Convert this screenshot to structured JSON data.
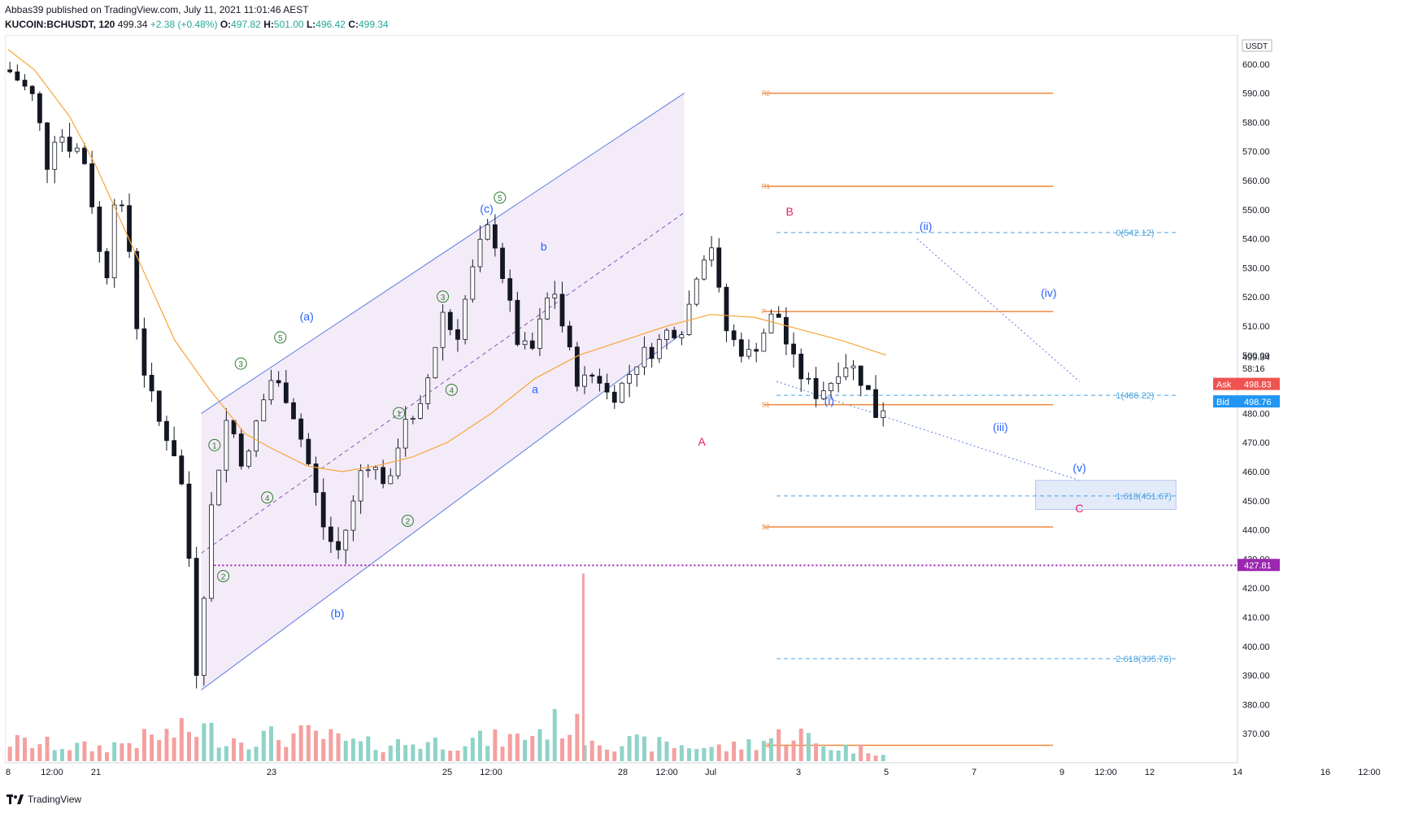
{
  "header": {
    "published": "Abbas39 published on TradingView.com, July 11, 2021 11:01:46 AEST",
    "symbol": "KUCOIN:BCHUSDT, 120",
    "last": "499.34",
    "change": "+2.38 (+0.48%)",
    "open_label": "O:",
    "open": "497.82",
    "high_label": "H:",
    "high": "501.00",
    "low_label": "L:",
    "low": "496.42",
    "close_label": "C:",
    "close": "499.34"
  },
  "footer": {
    "brand": "TradingView"
  },
  "colors": {
    "up": "#26a69a",
    "down": "#ef5350",
    "ma": "#f7a53a",
    "channel": "#5b7be0",
    "pivot": "#f0883e",
    "fib": "#4aa3df",
    "wave_blue": "#2962ff",
    "wave_pink": "#e91e63",
    "wave_green": "#2e7d32",
    "support": "#9c27b0"
  },
  "chart_data": {
    "type": "candlestick",
    "ylim": [
      360,
      610
    ],
    "y_ticks": [
      370,
      380,
      390,
      400,
      410,
      420,
      430,
      440,
      450,
      460,
      470,
      480,
      490,
      500,
      510,
      520,
      530,
      540,
      550,
      560,
      570,
      580,
      590,
      600,
      610
    ],
    "currency_label": "USDT",
    "x_ticks": [
      {
        "label": "8",
        "t": 0
      },
      {
        "label": "12:00",
        "t": 0.5
      },
      {
        "label": "21",
        "t": 1
      },
      {
        "label": "23",
        "t": 3
      },
      {
        "label": "25",
        "t": 5
      },
      {
        "label": "12:00",
        "t": 5.5
      },
      {
        "label": "28",
        "t": 7
      },
      {
        "label": "12:00",
        "t": 7.5
      },
      {
        "label": "Jul",
        "t": 8
      },
      {
        "label": "3",
        "t": 9
      },
      {
        "label": "5",
        "t": 10
      },
      {
        "label": "7",
        "t": 11
      },
      {
        "label": "9",
        "t": 12
      },
      {
        "label": "12:00",
        "t": 12.5
      },
      {
        "label": "12",
        "t": 13
      },
      {
        "label": "14",
        "t": 14
      },
      {
        "label": "16",
        "t": 15
      },
      {
        "label": "12:00",
        "t": 15.5
      }
    ],
    "price_path": [
      [
        0,
        598
      ],
      [
        0.1,
        595
      ],
      [
        0.3,
        588
      ],
      [
        0.45,
        565
      ],
      [
        0.55,
        578
      ],
      [
        0.7,
        572
      ],
      [
        0.85,
        570
      ],
      [
        1.0,
        545
      ],
      [
        1.1,
        520
      ],
      [
        1.2,
        555
      ],
      [
        1.35,
        545
      ],
      [
        1.5,
        500
      ],
      [
        1.7,
        478
      ],
      [
        1.85,
        470
      ],
      [
        1.95,
        462
      ],
      [
        2.05,
        435
      ],
      [
        2.15,
        390
      ],
      [
        2.3,
        445
      ],
      [
        2.5,
        480
      ],
      [
        2.7,
        460
      ],
      [
        2.85,
        480
      ],
      [
        3.0,
        492
      ],
      [
        3.2,
        485
      ],
      [
        3.4,
        465
      ],
      [
        3.6,
        440
      ],
      [
        3.75,
        432
      ],
      [
        3.9,
        445
      ],
      [
        4.05,
        465
      ],
      [
        4.2,
        460
      ],
      [
        4.35,
        455
      ],
      [
        4.5,
        480
      ],
      [
        4.65,
        475
      ],
      [
        4.8,
        495
      ],
      [
        4.95,
        515
      ],
      [
        5.1,
        505
      ],
      [
        5.25,
        525
      ],
      [
        5.4,
        540
      ],
      [
        5.5,
        545
      ],
      [
        5.65,
        525
      ],
      [
        5.8,
        505
      ],
      [
        5.95,
        500
      ],
      [
        6.05,
        510
      ],
      [
        6.2,
        525
      ],
      [
        6.35,
        505
      ],
      [
        6.5,
        490
      ],
      [
        6.7,
        494
      ],
      [
        6.85,
        485
      ],
      [
        7.0,
        490
      ],
      [
        7.2,
        500
      ],
      [
        7.35,
        502
      ],
      [
        7.5,
        508
      ],
      [
        7.7,
        510
      ],
      [
        7.85,
        530
      ],
      [
        8.0,
        540
      ],
      [
        8.15,
        510
      ],
      [
        8.3,
        503
      ],
      [
        8.45,
        500
      ],
      [
        8.6,
        508
      ],
      [
        8.75,
        516
      ],
      [
        8.9,
        500
      ],
      [
        9.05,
        492
      ],
      [
        9.2,
        487
      ],
      [
        9.35,
        490
      ],
      [
        9.5,
        498
      ],
      [
        9.65,
        495
      ],
      [
        9.8,
        487
      ],
      [
        9.9,
        478
      ],
      [
        10.0,
        485
      ]
    ],
    "volume_path": [
      [
        0,
        6
      ],
      [
        1,
        4
      ],
      [
        2.2,
        10
      ],
      [
        2.5,
        7
      ],
      [
        3.5,
        8
      ],
      [
        4,
        5
      ],
      [
        5,
        6
      ],
      [
        5.8,
        7
      ],
      [
        6.3,
        12
      ],
      [
        6.8,
        6
      ],
      [
        7.5,
        5
      ],
      [
        8.2,
        4
      ],
      [
        9,
        9
      ],
      [
        9.2,
        5
      ],
      [
        10,
        3
      ]
    ],
    "moving_average": [
      [
        0,
        605
      ],
      [
        0.3,
        598
      ],
      [
        0.7,
        582
      ],
      [
        1.0,
        565
      ],
      [
        1.3,
        545
      ],
      [
        1.6,
        525
      ],
      [
        1.9,
        505
      ],
      [
        2.3,
        488
      ],
      [
        2.7,
        473
      ],
      [
        3.0,
        468
      ],
      [
        3.4,
        462
      ],
      [
        3.8,
        460
      ],
      [
        4.2,
        462
      ],
      [
        4.6,
        465
      ],
      [
        5.0,
        470
      ],
      [
        5.5,
        480
      ],
      [
        6.0,
        492
      ],
      [
        6.5,
        500
      ],
      [
        7.0,
        505
      ],
      [
        7.5,
        510
      ],
      [
        8.0,
        514
      ],
      [
        8.5,
        513
      ],
      [
        9.0,
        509
      ],
      [
        9.5,
        505
      ],
      [
        10.0,
        500
      ]
    ],
    "pivot_levels": [
      {
        "label": "R2",
        "value": 590
      },
      {
        "label": "R1",
        "value": 558
      },
      {
        "label": "P",
        "value": 515
      },
      {
        "label": "S1",
        "value": 483
      },
      {
        "label": "S2",
        "value": 441
      },
      {
        "label": "S3",
        "value": 366
      }
    ],
    "fib_levels": [
      {
        "label": "0(542.12)",
        "value": 542.12
      },
      {
        "label": "1(486.22)",
        "value": 486.22
      },
      {
        "label": "1.618(451.67)",
        "value": 451.67
      },
      {
        "label": "2.618(395.76)",
        "value": 395.76
      }
    ],
    "support_level": {
      "value": 427.81,
      "label": "427.81"
    },
    "price_tags": [
      {
        "label": "Ask",
        "value": "498.83"
      },
      {
        "label": "Bid",
        "value": "498.76"
      }
    ],
    "last_price": {
      "value": "499.34",
      "countdown": "58:16"
    },
    "wave_labels": [
      {
        "text": "(a)",
        "t": 3.4,
        "v": 512,
        "color": "blue"
      },
      {
        "text": "(b)",
        "t": 3.75,
        "v": 410,
        "color": "blue"
      },
      {
        "text": "(c)",
        "t": 5.45,
        "v": 549,
        "color": "blue"
      },
      {
        "text": "a",
        "t": 6.0,
        "v": 487,
        "color": "blue"
      },
      {
        "text": "b",
        "t": 6.1,
        "v": 536,
        "color": "blue"
      },
      {
        "text": "A",
        "t": 7.9,
        "v": 469,
        "color": "pink"
      },
      {
        "text": "B",
        "t": 8.9,
        "v": 548,
        "color": "pink"
      },
      {
        "text": "C",
        "t": 12.2,
        "v": 446,
        "color": "pink"
      },
      {
        "text": "(i)",
        "t": 9.35,
        "v": 483,
        "color": "blue"
      },
      {
        "text": "(ii)",
        "t": 10.45,
        "v": 543,
        "color": "blue"
      },
      {
        "text": "(iii)",
        "t": 11.3,
        "v": 474,
        "color": "blue"
      },
      {
        "text": "(iv)",
        "t": 11.85,
        "v": 520,
        "color": "blue"
      },
      {
        "text": "(v)",
        "t": 12.2,
        "v": 460,
        "color": "blue"
      }
    ],
    "green_labels": [
      {
        "text": "1",
        "t": 2.35,
        "v": 468
      },
      {
        "text": "2",
        "t": 2.45,
        "v": 423
      },
      {
        "text": "3",
        "t": 2.65,
        "v": 496
      },
      {
        "text": "4",
        "t": 2.95,
        "v": 450
      },
      {
        "text": "5",
        "t": 3.1,
        "v": 505
      },
      {
        "text": "1",
        "t": 4.45,
        "v": 479
      },
      {
        "text": "2",
        "t": 4.55,
        "v": 442
      },
      {
        "text": "3",
        "t": 4.95,
        "v": 519
      },
      {
        "text": "4",
        "t": 5.05,
        "v": 487
      },
      {
        "text": "5",
        "t": 5.6,
        "v": 553
      }
    ]
  }
}
